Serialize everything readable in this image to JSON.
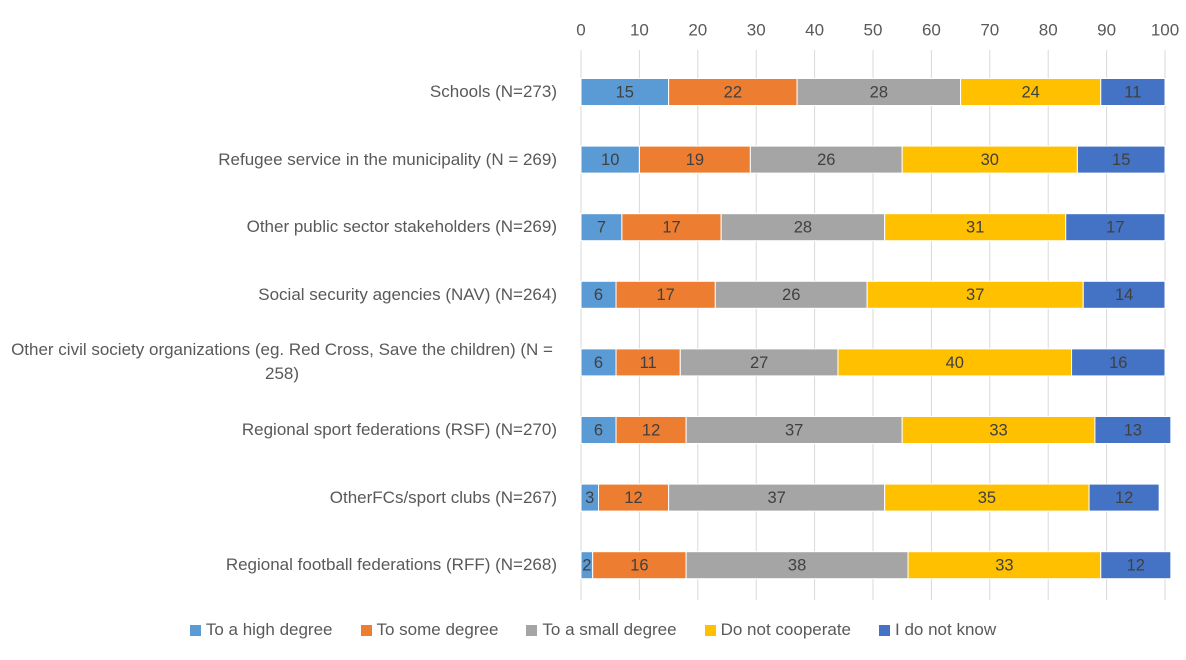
{
  "chart_data": {
    "type": "stacked-barh",
    "categories": [
      "Schools (N=273)",
      "Refugee service in the municipality (N = 269)",
      "Other public sector stakeholders (N=269)",
      "Social security agencies (NAV) (N=264)",
      "Other civil society organizations (eg. Red Cross, Save the children) (N = 258)",
      "Regional sport federations (RSF) (N=270)",
      "OtherFCs/sport clubs (N=267)",
      "Regional football federations (RFF) (N=268)"
    ],
    "series": [
      {
        "name": "To a high degree",
        "color": "#5B9BD5",
        "values": [
          15,
          10,
          7,
          6,
          6,
          6,
          3,
          2
        ]
      },
      {
        "name": "To some degree",
        "color": "#ED7D31",
        "values": [
          22,
          19,
          17,
          17,
          11,
          12,
          12,
          16
        ]
      },
      {
        "name": "To a small degree",
        "color": "#A5A5A5",
        "values": [
          28,
          26,
          28,
          26,
          27,
          37,
          37,
          38
        ]
      },
      {
        "name": "Do not cooperate",
        "color": "#FFC000",
        "values": [
          24,
          30,
          31,
          37,
          40,
          33,
          35,
          33
        ]
      },
      {
        "name": "I do not know",
        "color": "#4472C4",
        "values": [
          11,
          15,
          17,
          14,
          16,
          13,
          12,
          12
        ]
      }
    ],
    "xlim": [
      0,
      100
    ],
    "xticks": [
      0,
      10,
      20,
      30,
      40,
      50,
      60,
      70,
      80,
      90,
      100
    ],
    "grid": true,
    "legend": "bottom"
  }
}
